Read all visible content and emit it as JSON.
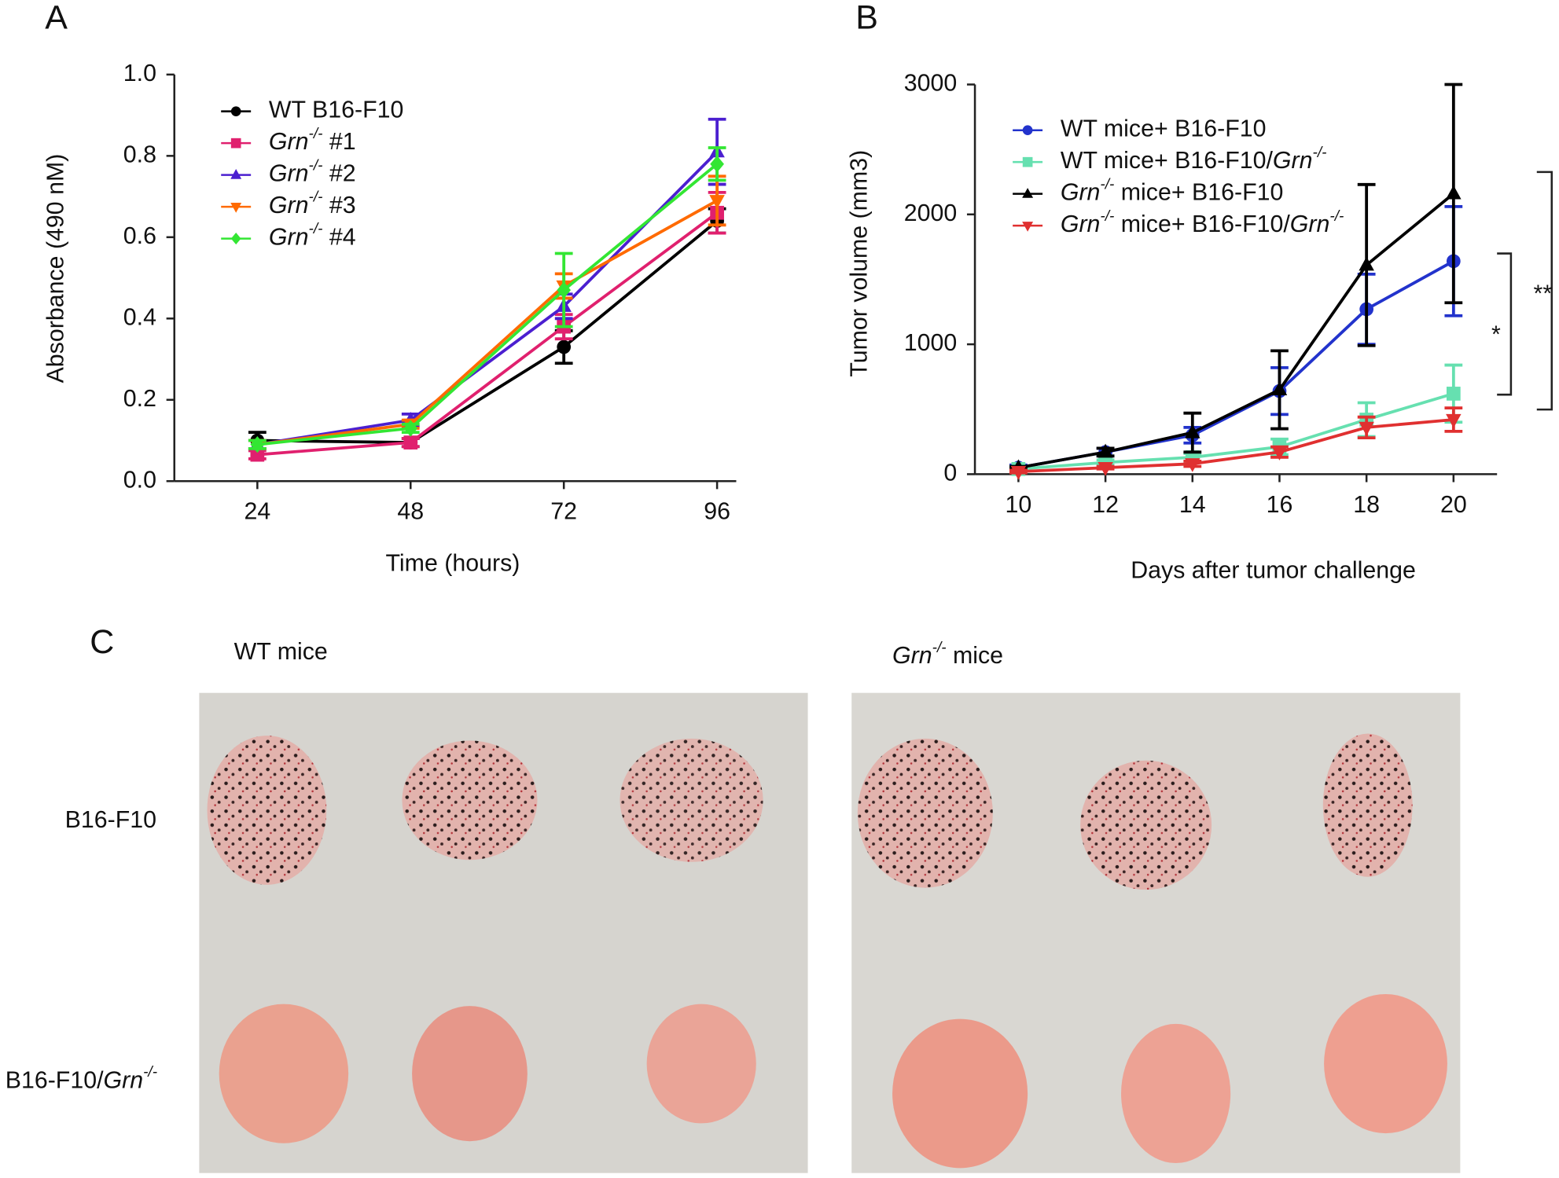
{
  "chart_data": [
    {
      "type": "line",
      "panel": "A",
      "x_label": "Time (hours)",
      "y_label": "Absorbance (490 nM)",
      "x": [
        24,
        48,
        72,
        96
      ],
      "xlim": [
        11,
        99
      ],
      "xticks": [
        24,
        48,
        72,
        96
      ],
      "ylim": [
        0,
        1
      ],
      "yticks": [
        {
          "value": 0,
          "label": "0.0"
        },
        0.2,
        0.4,
        0.6,
        0.8,
        {
          "value": 1,
          "label": "1.0"
        }
      ],
      "legend": "upper left",
      "series": [
        {
          "name": "WT B16-F10",
          "color": "#000000",
          "marker": "circle",
          "values": [
            0.1,
            0.095,
            0.33,
            0.64
          ],
          "errors": [
            0.02,
            0.01,
            0.04,
            0.03
          ]
        },
        {
          "name": "Grn-/- #1",
          "color": "#e0206e",
          "marker": "square",
          "values": [
            0.065,
            0.095,
            0.38,
            0.66
          ],
          "errors": [
            0.01,
            0.01,
            0.03,
            0.05
          ]
        },
        {
          "name": "Grn-/- #2",
          "color": "#4b1fd0",
          "marker": "triangle",
          "values": [
            0.09,
            0.15,
            0.43,
            0.81
          ],
          "errors": [
            0.01,
            0.015,
            0.03,
            0.08
          ]
        },
        {
          "name": "Grn-/- #3",
          "color": "#ff6a00",
          "marker": "triangle-down",
          "values": [
            0.09,
            0.14,
            0.48,
            0.69
          ],
          "errors": [
            0.01,
            0.01,
            0.03,
            0.06
          ]
        },
        {
          "name": "Grn-/- #4",
          "color": "#33e633",
          "marker": "diamond",
          "values": [
            0.09,
            0.13,
            0.47,
            0.78
          ],
          "errors": [
            0.01,
            0.01,
            0.09,
            0.04
          ]
        }
      ]
    },
    {
      "type": "line",
      "panel": "B",
      "x_label": "Days after tumor challenge",
      "y_label": "Tumor volume (mm3)",
      "x": [
        10,
        12,
        14,
        16,
        18,
        20
      ],
      "xlim": [
        9,
        21
      ],
      "xticks": [
        10,
        12,
        14,
        16,
        18,
        20
      ],
      "ylim": [
        0,
        3000
      ],
      "yticks": [
        0,
        1000,
        2000,
        3000
      ],
      "legend": "upper left",
      "series": [
        {
          "name": "WT mice+ B16-F10",
          "color": "#2233cc",
          "marker": "circle",
          "values": [
            50,
            170,
            300,
            640,
            1270,
            1640
          ],
          "errors": [
            20,
            30,
            60,
            180,
            270,
            420
          ]
        },
        {
          "name": "WT mice+ B16-F10/Grn-/-",
          "color": "#66e0b0",
          "marker": "square",
          "values": [
            40,
            90,
            130,
            210,
            420,
            620
          ],
          "errors": [
            10,
            20,
            30,
            60,
            130,
            220
          ]
        },
        {
          "name": "Grn-/- mice+ B16-F10",
          "color": "#000000",
          "marker": "triangle",
          "values": [
            50,
            170,
            320,
            650,
            1610,
            2160
          ],
          "errors": [
            10,
            30,
            150,
            300,
            620,
            840
          ]
        },
        {
          "name": "Grn-/- mice+ B16-F10/Grn-/-",
          "color": "#e03030",
          "marker": "triangle-down",
          "values": [
            20,
            50,
            80,
            170,
            360,
            420
          ],
          "errors": [
            10,
            10,
            20,
            40,
            80,
            90
          ]
        }
      ],
      "annotations": [
        "*",
        "**"
      ]
    }
  ],
  "panel_c": {
    "panel": "C",
    "columns": [
      "WT mice",
      "Grn-/- mice"
    ],
    "rows": [
      "B16-F10",
      "B16-F10/Grn-/-"
    ]
  }
}
